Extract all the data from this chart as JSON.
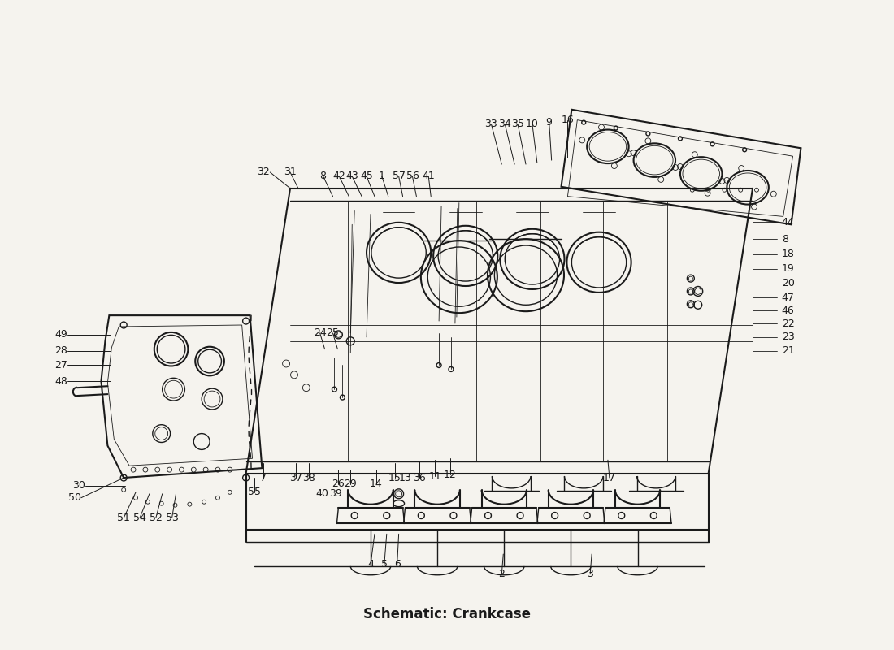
{
  "title": "Schematic: Crankcase",
  "bg_color": "#f5f3ee",
  "line_color": "#1a1a1a",
  "label_color": "#111111",
  "label_fontsize": 9,
  "title_fontsize": 12
}
